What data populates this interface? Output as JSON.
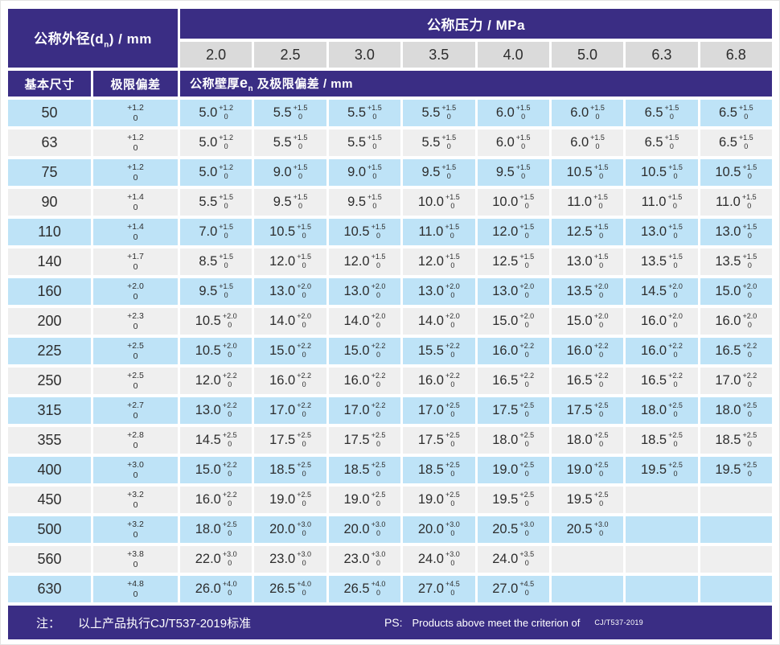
{
  "header": {
    "diameter_title_main": "公称外径(d",
    "diameter_title_sub": "n",
    "diameter_title_tail": ") / mm",
    "pressure_title": "公称压力 / MPa",
    "pressures": [
      "2.0",
      "2.5",
      "3.0",
      "3.5",
      "4.0",
      "5.0",
      "6.3",
      "6.8"
    ],
    "basic_size_label": "基本尺寸",
    "deviation_label": "极限偏差",
    "wall_label_prefix": "公称壁厚",
    "wall_label_symbol": "e",
    "wall_label_symbol_sub": "n",
    "wall_label_suffix": " 及极限偏差 / mm"
  },
  "rows": [
    {
      "dn": "50",
      "dev": [
        "+1.2",
        "0"
      ],
      "cells": [
        [
          "5.0",
          "+1.2",
          "0"
        ],
        [
          "5.5",
          "+1.5",
          "0"
        ],
        [
          "5.5",
          "+1.5",
          "0"
        ],
        [
          "5.5",
          "+1.5",
          "0"
        ],
        [
          "6.0",
          "+1.5",
          "0"
        ],
        [
          "6.0",
          "+1.5",
          "0"
        ],
        [
          "6.5",
          "+1.5",
          "0"
        ],
        [
          "6.5",
          "+1.5",
          "0"
        ]
      ]
    },
    {
      "dn": "63",
      "dev": [
        "+1.2",
        "0"
      ],
      "cells": [
        [
          "5.0",
          "+1.2",
          "0"
        ],
        [
          "5.5",
          "+1.5",
          "0"
        ],
        [
          "5.5",
          "+1.5",
          "0"
        ],
        [
          "5.5",
          "+1.5",
          "0"
        ],
        [
          "6.0",
          "+1.5",
          "0"
        ],
        [
          "6.0",
          "+1.5",
          "0"
        ],
        [
          "6.5",
          "+1.5",
          "0"
        ],
        [
          "6.5",
          "+1.5",
          "0"
        ]
      ]
    },
    {
      "dn": "75",
      "dev": [
        "+1.2",
        "0"
      ],
      "cells": [
        [
          "5.0",
          "+1.2",
          "0"
        ],
        [
          "9.0",
          "+1.5",
          "0"
        ],
        [
          "9.0",
          "+1.5",
          "0"
        ],
        [
          "9.5",
          "+1.5",
          "0"
        ],
        [
          "9.5",
          "+1.5",
          "0"
        ],
        [
          "10.5",
          "+1.5",
          "0"
        ],
        [
          "10.5",
          "+1.5",
          "0"
        ],
        [
          "10.5",
          "+1.5",
          "0"
        ]
      ]
    },
    {
      "dn": "90",
      "dev": [
        "+1.4",
        "0"
      ],
      "cells": [
        [
          "5.5",
          "+1.5",
          "0"
        ],
        [
          "9.5",
          "+1.5",
          "0"
        ],
        [
          "9.5",
          "+1.5",
          "0"
        ],
        [
          "10.0",
          "+1.5",
          "0"
        ],
        [
          "10.0",
          "+1.5",
          "0"
        ],
        [
          "11.0",
          "+1.5",
          "0"
        ],
        [
          "11.0",
          "+1.5",
          "0"
        ],
        [
          "11.0",
          "+1.5",
          "0"
        ]
      ]
    },
    {
      "dn": "110",
      "dev": [
        "+1.4",
        "0"
      ],
      "cells": [
        [
          "7.0",
          "+1.5",
          "0"
        ],
        [
          "10.5",
          "+1.5",
          "0"
        ],
        [
          "10.5",
          "+1.5",
          "0"
        ],
        [
          "11.0",
          "+1.5",
          "0"
        ],
        [
          "12.0",
          "+1.5",
          "0"
        ],
        [
          "12.5",
          "+1.5",
          "0"
        ],
        [
          "13.0",
          "+1.5",
          "0"
        ],
        [
          "13.0",
          "+1.5",
          "0"
        ]
      ]
    },
    {
      "dn": "140",
      "dev": [
        "+1.7",
        "0"
      ],
      "cells": [
        [
          "8.5",
          "+1.5",
          "0"
        ],
        [
          "12.0",
          "+1.5",
          "0"
        ],
        [
          "12.0",
          "+1.5",
          "0"
        ],
        [
          "12.0",
          "+1.5",
          "0"
        ],
        [
          "12.5",
          "+1.5",
          "0"
        ],
        [
          "13.0",
          "+1.5",
          "0"
        ],
        [
          "13.5",
          "+1.5",
          "0"
        ],
        [
          "13.5",
          "+1.5",
          "0"
        ]
      ]
    },
    {
      "dn": "160",
      "dev": [
        "+2.0",
        "0"
      ],
      "cells": [
        [
          "9.5",
          "+1.5",
          "0"
        ],
        [
          "13.0",
          "+2.0",
          "0"
        ],
        [
          "13.0",
          "+2.0",
          "0"
        ],
        [
          "13.0",
          "+2.0",
          "0"
        ],
        [
          "13.0",
          "+2.0",
          "0"
        ],
        [
          "13.5",
          "+2.0",
          "0"
        ],
        [
          "14.5",
          "+2.0",
          "0"
        ],
        [
          "15.0",
          "+2.0",
          "0"
        ]
      ]
    },
    {
      "dn": "200",
      "dev": [
        "+2.3",
        "0"
      ],
      "cells": [
        [
          "10.5",
          "+2.0",
          "0"
        ],
        [
          "14.0",
          "+2.0",
          "0"
        ],
        [
          "14.0",
          "+2.0",
          "0"
        ],
        [
          "14.0",
          "+2.0",
          "0"
        ],
        [
          "15.0",
          "+2.0",
          "0"
        ],
        [
          "15.0",
          "+2.0",
          "0"
        ],
        [
          "16.0",
          "+2.0",
          "0"
        ],
        [
          "16.0",
          "+2.0",
          "0"
        ]
      ]
    },
    {
      "dn": "225",
      "dev": [
        "+2.5",
        "0"
      ],
      "cells": [
        [
          "10.5",
          "+2.0",
          "0"
        ],
        [
          "15.0",
          "+2.2",
          "0"
        ],
        [
          "15.0",
          "+2.2",
          "0"
        ],
        [
          "15.5",
          "+2.2",
          "0"
        ],
        [
          "16.0",
          "+2.2",
          "0"
        ],
        [
          "16.0",
          "+2.2",
          "0"
        ],
        [
          "16.0",
          "+2.2",
          "0"
        ],
        [
          "16.5",
          "+2.2",
          "0"
        ]
      ]
    },
    {
      "dn": "250",
      "dev": [
        "+2.5",
        "0"
      ],
      "cells": [
        [
          "12.0",
          "+2.2",
          "0"
        ],
        [
          "16.0",
          "+2.2",
          "0"
        ],
        [
          "16.0",
          "+2.2",
          "0"
        ],
        [
          "16.0",
          "+2.2",
          "0"
        ],
        [
          "16.5",
          "+2.2",
          "0"
        ],
        [
          "16.5",
          "+2.2",
          "0"
        ],
        [
          "16.5",
          "+2.2",
          "0"
        ],
        [
          "17.0",
          "+2.2",
          "0"
        ]
      ]
    },
    {
      "dn": "315",
      "dev": [
        "+2.7",
        "0"
      ],
      "cells": [
        [
          "13.0",
          "+2.2",
          "0"
        ],
        [
          "17.0",
          "+2.2",
          "0"
        ],
        [
          "17.0",
          "+2.2",
          "0"
        ],
        [
          "17.0",
          "+2.5",
          "0"
        ],
        [
          "17.5",
          "+2.5",
          "0"
        ],
        [
          "17.5",
          "+2.5",
          "0"
        ],
        [
          "18.0",
          "+2.5",
          "0"
        ],
        [
          "18.0",
          "+2.5",
          "0"
        ]
      ]
    },
    {
      "dn": "355",
      "dev": [
        "+2.8",
        "0"
      ],
      "cells": [
        [
          "14.5",
          "+2.5",
          "0"
        ],
        [
          "17.5",
          "+2.5",
          "0"
        ],
        [
          "17.5",
          "+2.5",
          "0"
        ],
        [
          "17.5",
          "+2.5",
          "0"
        ],
        [
          "18.0",
          "+2.5",
          "0"
        ],
        [
          "18.0",
          "+2.5",
          "0"
        ],
        [
          "18.5",
          "+2.5",
          "0"
        ],
        [
          "18.5",
          "+2.5",
          "0"
        ]
      ]
    },
    {
      "dn": "400",
      "dev": [
        "+3.0",
        "0"
      ],
      "cells": [
        [
          "15.0",
          "+2.2",
          "0"
        ],
        [
          "18.5",
          "+2.5",
          "0"
        ],
        [
          "18.5",
          "+2.5",
          "0"
        ],
        [
          "18.5",
          "+2.5",
          "0"
        ],
        [
          "19.0",
          "+2.5",
          "0"
        ],
        [
          "19.0",
          "+2.5",
          "0"
        ],
        [
          "19.5",
          "+2.5",
          "0"
        ],
        [
          "19.5",
          "+2.5",
          "0"
        ]
      ]
    },
    {
      "dn": "450",
      "dev": [
        "+3.2",
        "0"
      ],
      "cells": [
        [
          "16.0",
          "+2.2",
          "0"
        ],
        [
          "19.0",
          "+2.5",
          "0"
        ],
        [
          "19.0",
          "+2.5",
          "0"
        ],
        [
          "19.0",
          "+2.5",
          "0"
        ],
        [
          "19.5",
          "+2.5",
          "0"
        ],
        [
          "19.5",
          "+2.5",
          "0"
        ],
        null,
        null
      ]
    },
    {
      "dn": "500",
      "dev": [
        "+3.2",
        "0"
      ],
      "cells": [
        [
          "18.0",
          "+2.5",
          "0"
        ],
        [
          "20.0",
          "+3.0",
          "0"
        ],
        [
          "20.0",
          "+3.0",
          "0"
        ],
        [
          "20.0",
          "+3.0",
          "0"
        ],
        [
          "20.5",
          "+3.0",
          "0"
        ],
        [
          "20.5",
          "+3.0",
          "0"
        ],
        null,
        null
      ]
    },
    {
      "dn": "560",
      "dev": [
        "+3.8",
        "0"
      ],
      "cells": [
        [
          "22.0",
          "+3.0",
          "0"
        ],
        [
          "23.0",
          "+3.0",
          "0"
        ],
        [
          "23.0",
          "+3.0",
          "0"
        ],
        [
          "24.0",
          "+3.0",
          "0"
        ],
        [
          "24.0",
          "+3.5",
          "0"
        ],
        null,
        null,
        null
      ]
    },
    {
      "dn": "630",
      "dev": [
        "+4.8",
        "0"
      ],
      "cells": [
        [
          "26.0",
          "+4.0",
          "0"
        ],
        [
          "26.5",
          "+4.0",
          "0"
        ],
        [
          "26.5",
          "+4.0",
          "0"
        ],
        [
          "27.0",
          "+4.5",
          "0"
        ],
        [
          "27.0",
          "+4.5",
          "0"
        ],
        null,
        null,
        null
      ]
    }
  ],
  "footer": {
    "note_label": "注：",
    "note_text": "以上产品执行CJ/T537-2019标准",
    "ps_label": "PS:",
    "ps_text": "Products above meet the criterion of",
    "ps_standard": "CJ/T537-2019"
  },
  "colors": {
    "header_purple": "#3A2D84",
    "row_blue": "#BEE3F7",
    "row_gray": "#EFEFEF",
    "pressure_box_gray": "#DADADA",
    "text_dark": "#2D2D2D"
  }
}
